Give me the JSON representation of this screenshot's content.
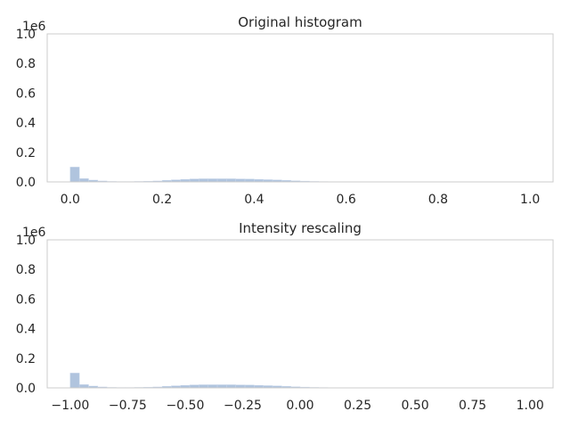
{
  "chart_data": [
    {
      "type": "bar",
      "title": "Original histogram",
      "y_offset_label": "1e6",
      "xlim": [
        -0.05,
        1.05
      ],
      "ylim": [
        0,
        1.0
      ],
      "xticks": [
        0.0,
        0.2,
        0.4,
        0.6,
        0.8,
        1.0
      ],
      "xtick_labels": [
        "0.0",
        "0.2",
        "0.4",
        "0.6",
        "0.8",
        "1.0"
      ],
      "yticks": [
        0.0,
        0.2,
        0.4,
        0.6,
        0.8,
        1.0
      ],
      "ytick_labels": [
        "0.0",
        "0.2",
        "0.4",
        "0.6",
        "0.8",
        "1.0"
      ],
      "grid": false,
      "bin_edges": [
        0.0,
        0.02,
        0.04,
        0.06,
        0.08,
        0.1,
        0.12,
        0.14,
        0.16,
        0.18,
        0.2,
        0.22,
        0.24,
        0.26,
        0.28,
        0.3,
        0.32,
        0.34,
        0.36,
        0.38,
        0.4,
        0.42,
        0.44,
        0.46,
        0.48,
        0.5,
        0.52,
        0.54,
        0.56,
        0.58,
        0.6,
        0.62,
        0.64,
        0.66,
        0.68,
        0.7,
        0.72,
        0.74,
        0.76,
        0.78,
        0.8,
        0.82,
        0.84,
        0.86,
        0.88,
        0.9,
        0.92,
        0.94,
        0.96,
        0.98,
        1.0
      ],
      "counts": [
        0.1,
        0.022,
        0.012,
        0.006,
        0.003,
        0.002,
        0.002,
        0.003,
        0.004,
        0.006,
        0.01,
        0.014,
        0.017,
        0.02,
        0.021,
        0.021,
        0.021,
        0.021,
        0.02,
        0.019,
        0.017,
        0.015,
        0.013,
        0.01,
        0.007,
        0.005,
        0.003,
        0.002,
        0.001,
        0.001,
        0.001,
        0.001,
        0.001,
        0.001,
        0.001,
        0.001,
        0.001,
        0.001,
        0.001,
        0.001,
        0.001,
        0.001,
        0.001,
        0.001,
        0.001,
        0.001,
        0.001,
        0.001,
        0.001,
        0.001
      ]
    },
    {
      "type": "bar",
      "title": "Intensity rescaling",
      "y_offset_label": "1e6",
      "xlim": [
        -1.1,
        1.1
      ],
      "ylim": [
        0,
        1.0
      ],
      "xticks": [
        -1.0,
        -0.75,
        -0.5,
        -0.25,
        0.0,
        0.25,
        0.5,
        0.75,
        1.0
      ],
      "xtick_labels": [
        "−1.00",
        "−0.75",
        "−0.50",
        "−0.25",
        "0.00",
        "0.25",
        "0.50",
        "0.75",
        "1.00"
      ],
      "yticks": [
        0.0,
        0.2,
        0.4,
        0.6,
        0.8,
        1.0
      ],
      "ytick_labels": [
        "0.0",
        "0.2",
        "0.4",
        "0.6",
        "0.8",
        "1.0"
      ],
      "grid": false,
      "bin_edges": [
        -1.0,
        -0.96,
        -0.92,
        -0.88,
        -0.84,
        -0.8,
        -0.76,
        -0.72,
        -0.68,
        -0.64,
        -0.6,
        -0.56,
        -0.52,
        -0.48,
        -0.44,
        -0.4,
        -0.36,
        -0.32,
        -0.28,
        -0.24,
        -0.2,
        -0.16,
        -0.12,
        -0.08,
        -0.04,
        0.0,
        0.04,
        0.08,
        0.12,
        0.16,
        0.2,
        0.24,
        0.28,
        0.32,
        0.36,
        0.4,
        0.44,
        0.48,
        0.52,
        0.56,
        0.6,
        0.64,
        0.68,
        0.72,
        0.76,
        0.8,
        0.84,
        0.88,
        0.92,
        0.96,
        1.0
      ],
      "counts": [
        0.1,
        0.022,
        0.012,
        0.006,
        0.003,
        0.002,
        0.002,
        0.003,
        0.004,
        0.006,
        0.01,
        0.014,
        0.017,
        0.02,
        0.021,
        0.021,
        0.021,
        0.021,
        0.02,
        0.019,
        0.017,
        0.015,
        0.013,
        0.01,
        0.007,
        0.005,
        0.003,
        0.002,
        0.001,
        0.001,
        0.001,
        0.001,
        0.001,
        0.001,
        0.001,
        0.001,
        0.001,
        0.001,
        0.001,
        0.001,
        0.001,
        0.001,
        0.001,
        0.001,
        0.001,
        0.001,
        0.001,
        0.001,
        0.001,
        0.001
      ]
    }
  ]
}
